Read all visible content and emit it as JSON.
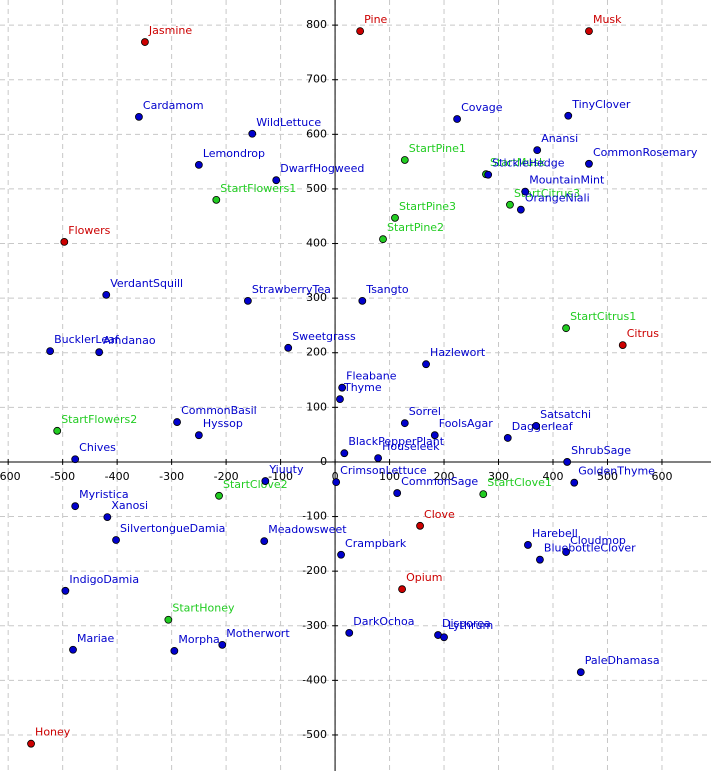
{
  "chart_data": {
    "type": "scatter",
    "xlim": [
      -615,
      690
    ],
    "ylim": [
      -566,
      846
    ],
    "xticks": [
      -600,
      -500,
      -400,
      -300,
      -200,
      -100,
      0,
      100,
      200,
      300,
      400,
      500,
      600
    ],
    "yticks": [
      -500,
      -400,
      -300,
      -200,
      -100,
      0,
      100,
      200,
      300,
      400,
      500,
      600,
      700,
      800
    ],
    "grid": true,
    "series": [
      {
        "color": "#cc0000",
        "labels": [
          "Jasmine",
          "Pine",
          "Musk",
          "Flowers",
          "Citrus",
          "Clove",
          "Opium",
          "Honey"
        ],
        "x": [
          -349,
          46,
          466,
          -497,
          528,
          156,
          123,
          -558
        ],
        "y": [
          769,
          789,
          789,
          403,
          214,
          -117,
          -233,
          -516
        ]
      },
      {
        "color": "#22cc22",
        "labels": [
          "StartPine1",
          "StartFlowers1",
          "StartMusk",
          "StartCitrus3",
          "StartPine3",
          "StartPine2",
          "StartCitrus1",
          "StartFlowers2",
          "StartClove2",
          "StartClove1",
          "StartHoney"
        ],
        "x": [
          128,
          -218,
          277,
          321,
          110,
          88,
          424,
          -510,
          -213,
          272,
          -306
        ],
        "y": [
          553,
          480,
          527,
          471,
          447,
          408,
          245,
          57,
          -62,
          -59,
          -289
        ]
      },
      {
        "color": "#0000cc",
        "labels": [
          "Cardamom",
          "WildLettuce",
          "Covage",
          "TinyClover",
          "Lemondrop",
          "DwarfHogweed",
          "Anansi",
          "CommonRosemary",
          "StickleHedge",
          "MountainMint",
          "OrangeNiali",
          "VerdantSquill",
          "StrawberryTea",
          "Tsangto",
          "BucklerLeaf",
          "Amdanao",
          "Sweetgrass",
          "Hazlewort",
          "Fleabane",
          "Thyme",
          "CommonBasil",
          "Hyssop",
          "Sorrel",
          "FoolsAgar",
          "Daggerleaf",
          "Satsatchi",
          "Chives",
          "BlackPepperPlant",
          "Houseleek",
          "ShrubSage",
          "GoldenThyme",
          "Yiuuty",
          "CrimsonLettuce",
          "CommonSage",
          "Myristica",
          "Xanosi",
          "SilvertongueDamia",
          "Meadowsweet",
          "Crampbark",
          "Harebell",
          "Cloudmop",
          "BluebottleClover",
          "IndigoDamia",
          "DarkOchoa",
          "Disporea",
          "Lythrum",
          "Mariae",
          "Morpha",
          "Motherwort",
          "PaleDhamasa"
        ],
        "x": [
          -360,
          -152,
          224,
          428,
          -250,
          -108,
          371,
          466,
          281,
          349,
          341,
          -420,
          -160,
          50,
          -523,
          -433,
          -86,
          167,
          13,
          9,
          -290,
          -250,
          128,
          183,
          317,
          369,
          -477,
          17,
          79,
          426,
          439,
          -128,
          2,
          114,
          -477,
          -418,
          -402,
          -130,
          11,
          354,
          424,
          376,
          -495,
          26,
          189,
          200,
          -481,
          -295,
          -207,
          451
        ],
        "y": [
          632,
          601,
          628,
          634,
          544,
          516,
          571,
          546,
          526,
          495,
          462,
          306,
          295,
          295,
          203,
          201,
          209,
          179,
          136,
          115,
          73,
          49,
          71,
          49,
          44,
          66,
          5,
          16,
          7,
          0,
          -38,
          -35,
          -37,
          -57,
          -81,
          -101,
          -143,
          -145,
          -170,
          -152,
          -165,
          -179,
          -236,
          -313,
          -317,
          -321,
          -344,
          -346,
          -335,
          -385
        ]
      }
    ]
  }
}
